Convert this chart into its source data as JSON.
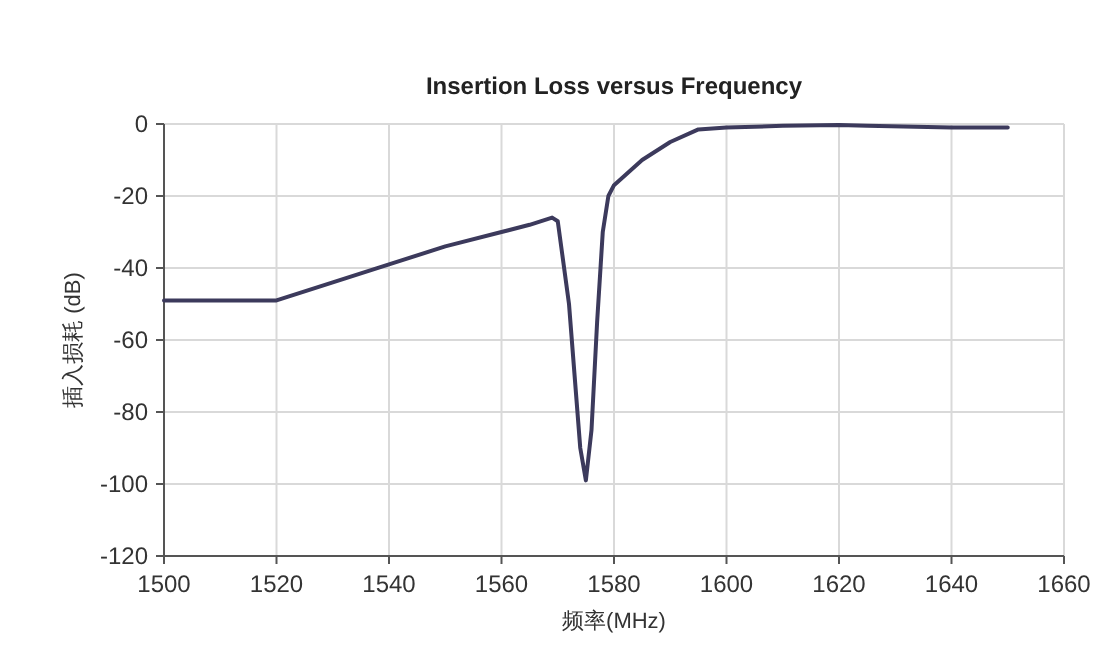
{
  "chart_data": {
    "type": "line",
    "title": "Insertion Loss versus Frequency",
    "xlabel": "频率(MHz)",
    "ylabel": "插入损耗 (dB)",
    "xlim": [
      1500,
      1660
    ],
    "xticks": [
      1500,
      1520,
      1540,
      1560,
      1580,
      1600,
      1620,
      1640,
      1660
    ],
    "ylim": [
      -120,
      0
    ],
    "yticks": [
      -120,
      -100,
      -80,
      -60,
      -40,
      -20,
      0
    ],
    "grid": true,
    "series": [
      {
        "color": "#3c3a5c",
        "x": [
          1500,
          1520,
          1530,
          1540,
          1550,
          1560,
          1565,
          1569,
          1570,
          1572,
          1574,
          1575,
          1576,
          1577,
          1578,
          1579,
          1580,
          1585,
          1590,
          1595,
          1600,
          1610,
          1620,
          1625,
          1640,
          1650
        ],
        "values": [
          -49,
          -49,
          -44,
          -39,
          -34,
          -30,
          -28,
          -26,
          -27,
          -50,
          -90,
          -99,
          -85,
          -55,
          -30,
          -20,
          -17,
          -10,
          -5,
          -1.5,
          -1,
          -0.5,
          -0.3,
          -0.5,
          -1,
          -1
        ]
      }
    ]
  }
}
